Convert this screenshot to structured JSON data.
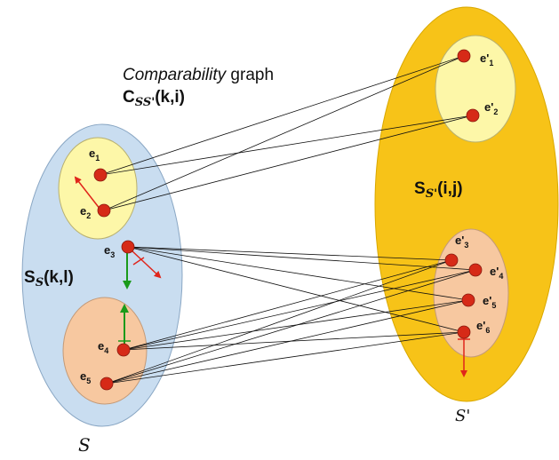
{
  "title": {
    "italic": "Comparability",
    "rest": " graph",
    "line2_prefix": "C",
    "line2_sub": "SS'",
    "line2_suffix": "(k,i)"
  },
  "left_set": {
    "label_prefix": "S",
    "label_sub": "S",
    "label_suffix": "(k,l)",
    "caption": "S",
    "nodes": [
      {
        "id": "e1",
        "base": "e",
        "sub": "1"
      },
      {
        "id": "e2",
        "base": "e",
        "sub": "2"
      },
      {
        "id": "e3",
        "base": "e",
        "sub": "3"
      },
      {
        "id": "e4",
        "base": "e",
        "sub": "4"
      },
      {
        "id": "e5",
        "base": "e",
        "sub": "5"
      }
    ]
  },
  "right_set": {
    "label_prefix": "S",
    "label_sub": "S'",
    "label_suffix": "(i,j)",
    "caption": "S'",
    "nodes": [
      {
        "id": "e'1",
        "base": "e'",
        "sub": "1"
      },
      {
        "id": "e'2",
        "base": "e'",
        "sub": "2"
      },
      {
        "id": "e'3",
        "base": "e'",
        "sub": "3"
      },
      {
        "id": "e'4",
        "base": "e'",
        "sub": "4"
      },
      {
        "id": "e'5",
        "base": "e'",
        "sub": "5"
      },
      {
        "id": "e'6",
        "base": "e'",
        "sub": "6"
      }
    ]
  },
  "edges": [
    [
      "e1",
      "e'1"
    ],
    [
      "e1",
      "e'2"
    ],
    [
      "e2",
      "e'1"
    ],
    [
      "e2",
      "e'2"
    ],
    [
      "e3",
      "e'3"
    ],
    [
      "e3",
      "e'4"
    ],
    [
      "e3",
      "e'5"
    ],
    [
      "e3",
      "e'6"
    ],
    [
      "e4",
      "e'3"
    ],
    [
      "e4",
      "e'4"
    ],
    [
      "e4",
      "e'5"
    ],
    [
      "e4",
      "e'6"
    ],
    [
      "e5",
      "e'3"
    ],
    [
      "e5",
      "e'4"
    ],
    [
      "e5",
      "e'5"
    ],
    [
      "e5",
      "e'6"
    ]
  ],
  "colors": {
    "left_outer": "#c9ddf0",
    "right_outer": "#f7c318",
    "yellow_inner": "#fdf7a8",
    "orange_inner": "#f7c8a0",
    "node": "#d62a17",
    "edge": "#111111",
    "arrow_red": "#e0251b",
    "arrow_green": "#1a9a1a"
  }
}
